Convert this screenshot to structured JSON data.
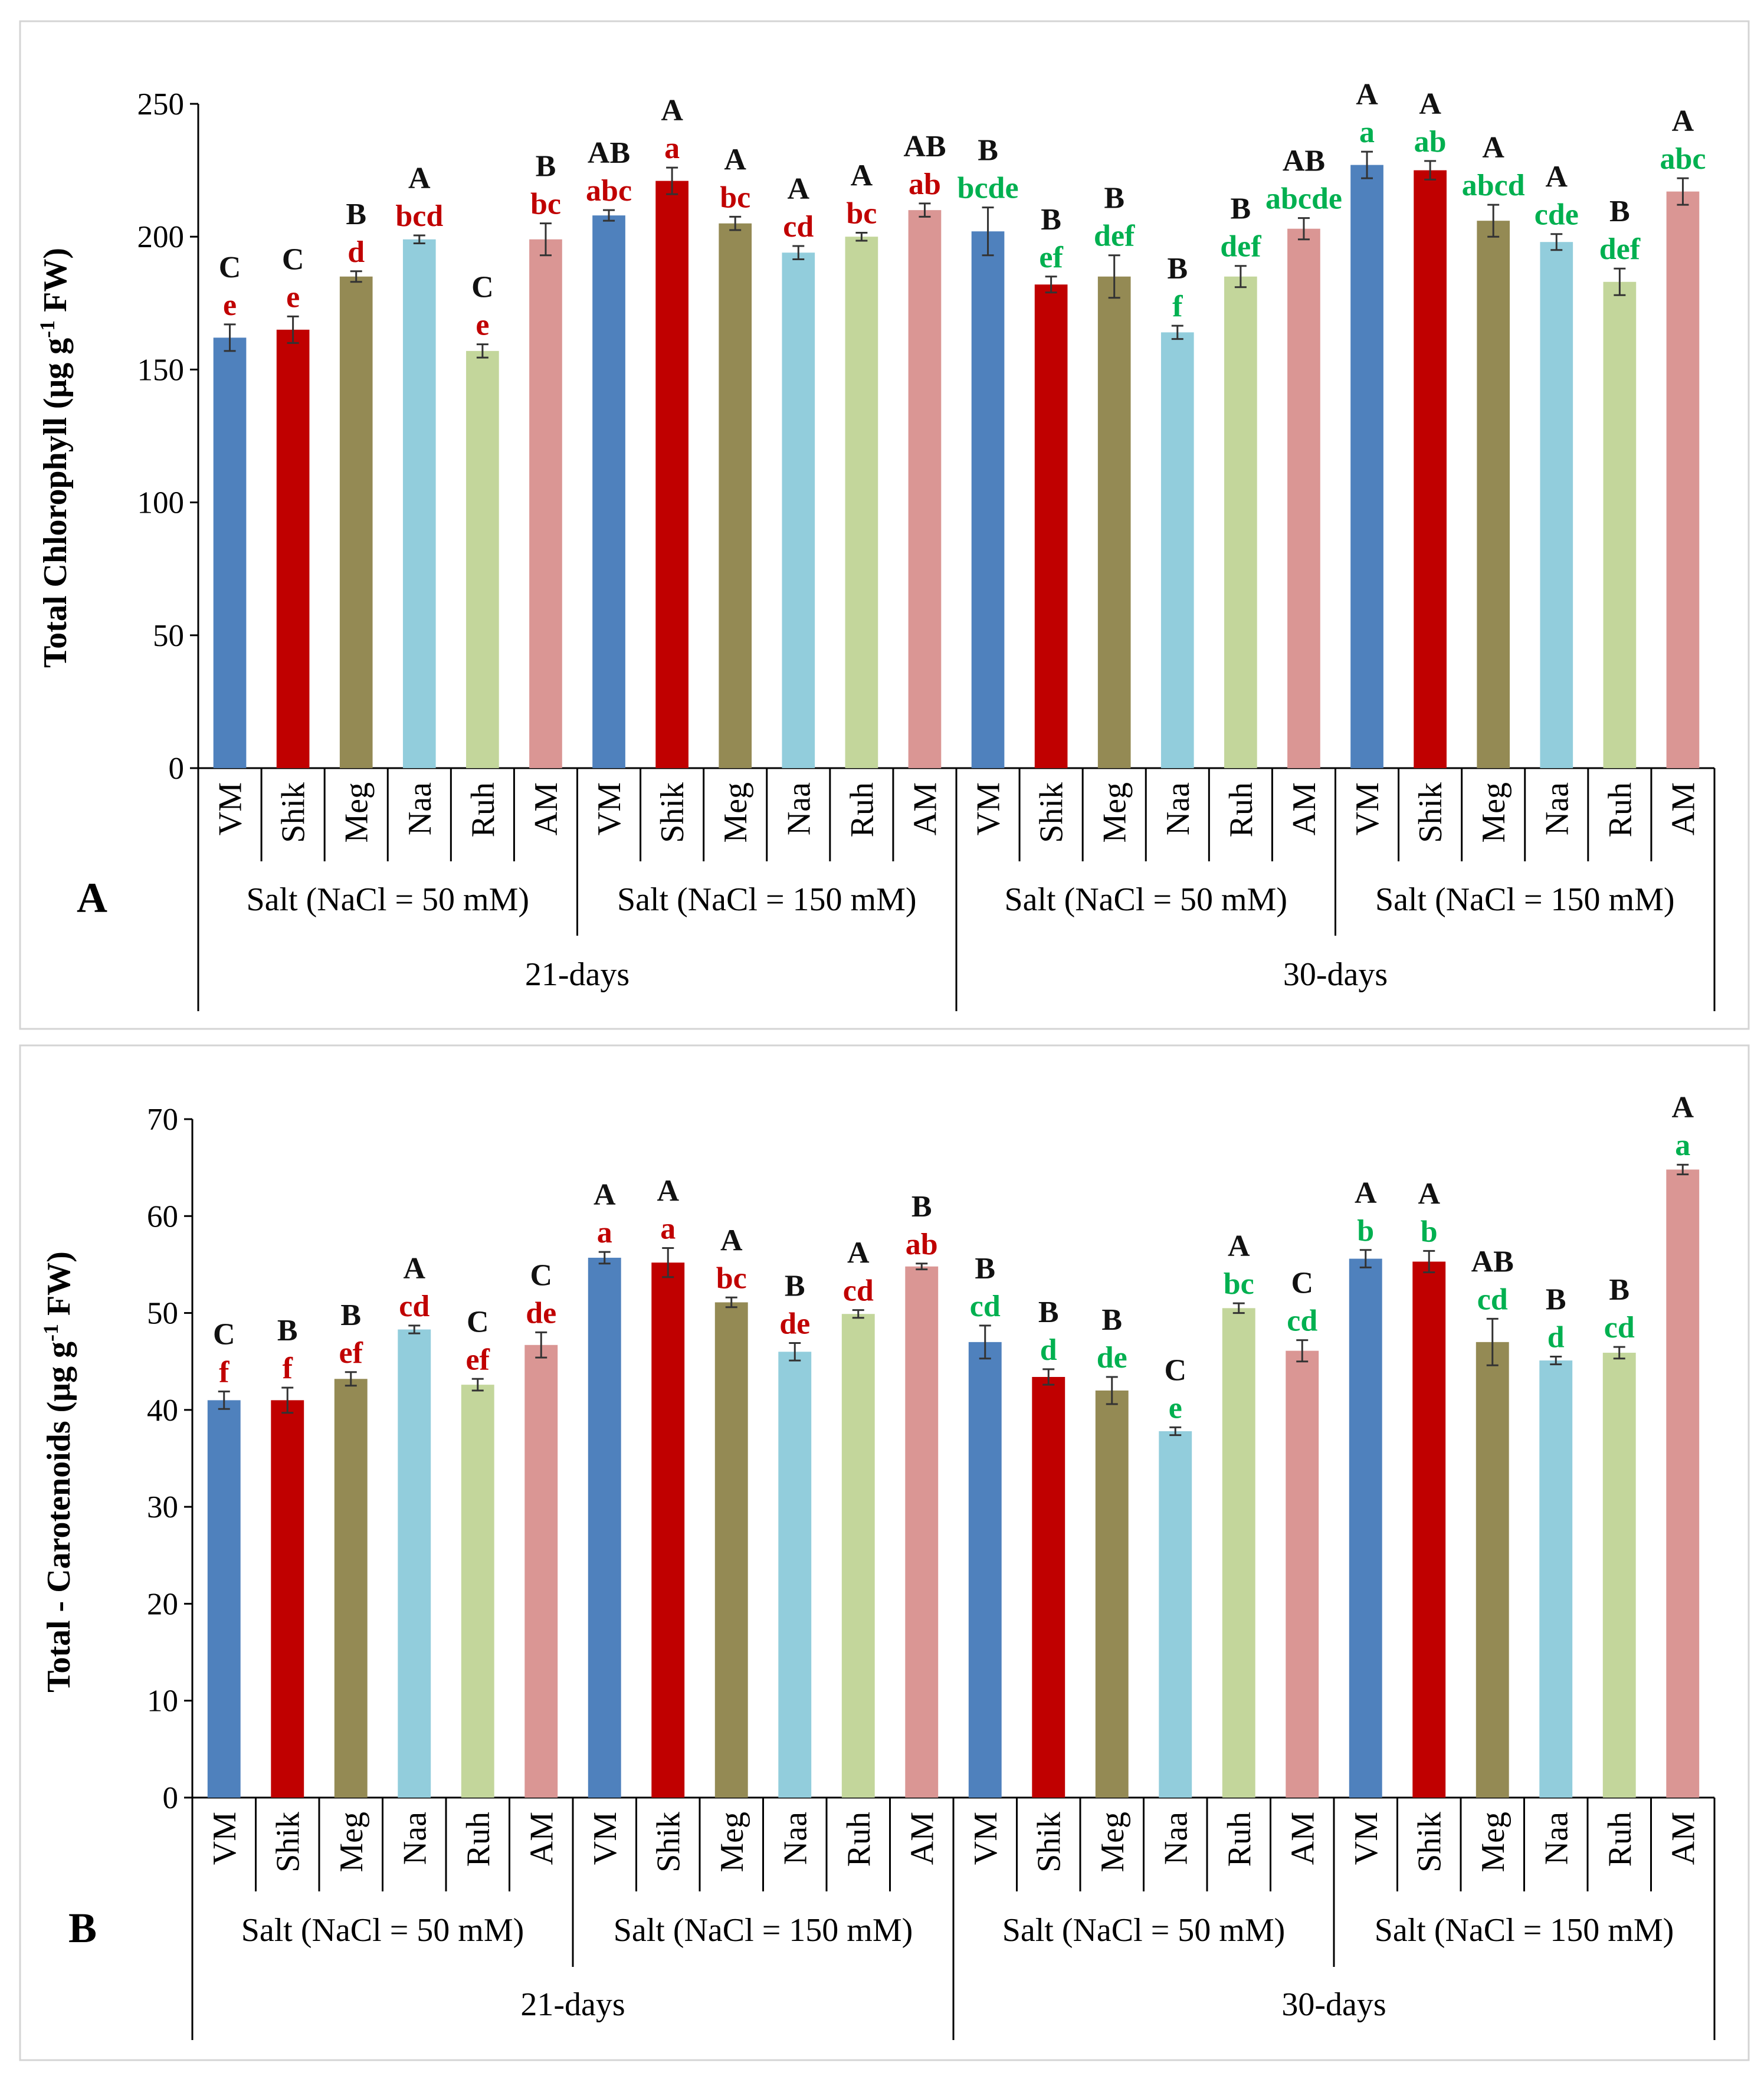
{
  "colors": {
    "VM": "#4f81bd",
    "Shik": "#c00000",
    "Meg": "#948a54",
    "Naa": "#92cddc",
    "Ruh": "#c3d69b",
    "AM": "#da9694",
    "letters_21days": "#c00000",
    "letters_30days": "#00b050"
  },
  "chart_data": [
    {
      "type": "bar",
      "panel_label": "A",
      "ylabel": "Total Chlorophyll (μg g-1 FW)",
      "ylabel_parts": [
        "Total Chlorophyll (μg g",
        "-1",
        " FW)"
      ],
      "ylim": [
        0,
        250
      ],
      "yticks": [
        0,
        50,
        100,
        150,
        200,
        250
      ],
      "categories": [
        "VM",
        "Shik",
        "Meg",
        "Naa",
        "Ruh",
        "AM",
        "VM",
        "Shik",
        "Meg",
        "Naa",
        "Ruh",
        "AM",
        "VM",
        "Shik",
        "Meg",
        "Naa",
        "Ruh",
        "AM",
        "VM",
        "Shik",
        "Meg",
        "Naa",
        "Ruh",
        "AM"
      ],
      "groups": [
        "Salt  (NaCl = 50 mM)",
        "Salt  (NaCl = 150 mM)",
        "Salt  (NaCl = 50 mM)",
        "Salt  (NaCl = 150 mM)"
      ],
      "periods": [
        "21-days",
        "30-days"
      ],
      "values": [
        162,
        165,
        185,
        199,
        157,
        199,
        208,
        221,
        205,
        194,
        200,
        210,
        202,
        182,
        185,
        164,
        185,
        203,
        227,
        225,
        206,
        198,
        183,
        217
      ],
      "errors": [
        5,
        5,
        2,
        1.5,
        2.5,
        6,
        2,
        5,
        2.5,
        2.5,
        1.5,
        2.5,
        9,
        3,
        8,
        2.5,
        4,
        4,
        5,
        3.5,
        6,
        3,
        5,
        5
      ],
      "upper_letters": [
        "C",
        "C",
        "B",
        "A",
        "C",
        "B",
        "AB",
        "A",
        "A",
        "A",
        "A",
        "AB",
        "B",
        "B",
        "B",
        "B",
        "B",
        "AB",
        "A",
        "A",
        "A",
        "A",
        "B",
        "A"
      ],
      "lower_letters": [
        "e",
        "e",
        "d",
        "bcd",
        "e",
        "bc",
        "abc",
        "a",
        "bc",
        "cd",
        "bc",
        "ab",
        "bcde",
        "ef",
        "def",
        "f",
        "def",
        "abcde",
        "a",
        "ab",
        "abcd",
        "cde",
        "def",
        "abc"
      ]
    },
    {
      "type": "bar",
      "panel_label": "B",
      "ylabel": "Total - Carotenoids (μg g-1 FW)",
      "ylabel_parts": [
        "Total - Carotenoids (μg g",
        "-1",
        " FW)"
      ],
      "ylim": [
        0,
        70
      ],
      "yticks": [
        0,
        10,
        20,
        30,
        40,
        50,
        60,
        70
      ],
      "categories": [
        "VM",
        "Shik",
        "Meg",
        "Naa",
        "Ruh",
        "AM",
        "VM",
        "Shik",
        "Meg",
        "Naa",
        "Ruh",
        "AM",
        "VM",
        "Shik",
        "Meg",
        "Naa",
        "Ruh",
        "AM",
        "VM",
        "Shik",
        "Meg",
        "Naa",
        "Ruh",
        "AM"
      ],
      "groups": [
        "Salt  (NaCl = 50 mM)",
        "Salt  (NaCl = 150 mM)",
        "Salt  (NaCl = 50 mM)",
        "Salt  (NaCl = 150 mM)"
      ],
      "periods": [
        "21-days",
        "30-days"
      ],
      "values": [
        41,
        41,
        43.2,
        48.3,
        42.6,
        46.7,
        55.7,
        55.2,
        51.1,
        46,
        49.9,
        54.8,
        47,
        43.4,
        42,
        37.8,
        50.5,
        46.1,
        55.6,
        55.3,
        47,
        45.1,
        45.9,
        64.8
      ],
      "errors": [
        0.9,
        1.3,
        0.7,
        0.4,
        0.6,
        1.3,
        0.6,
        1.5,
        0.5,
        0.9,
        0.4,
        0.3,
        1.7,
        0.8,
        1.4,
        0.4,
        0.5,
        1.1,
        0.9,
        1.1,
        2.4,
        0.4,
        0.6,
        0.5
      ],
      "upper_letters": [
        "C",
        "B",
        "B",
        "A",
        "C",
        "C",
        "A",
        "A",
        "A",
        "B",
        "A",
        "B",
        "B",
        "B",
        "B",
        "C",
        "A",
        "C",
        "A",
        "A",
        "AB",
        "B",
        "B",
        "A"
      ],
      "lower_letters": [
        "f",
        "f",
        "ef",
        "cd",
        "ef",
        "de",
        "a",
        "a",
        "bc",
        "de",
        "cd",
        "ab",
        "cd",
        "d",
        "de",
        "e",
        "bc",
        "cd",
        "b",
        "b",
        "cd",
        "d",
        "cd",
        "a"
      ]
    }
  ]
}
